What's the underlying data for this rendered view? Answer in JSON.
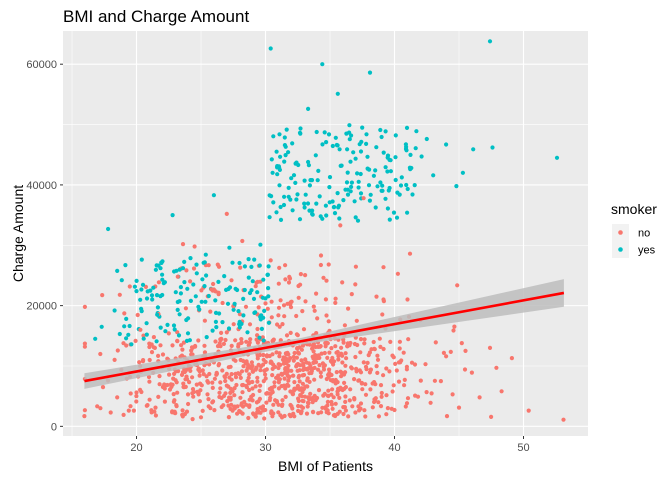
{
  "colors": {
    "no": "#F8766D",
    "yes": "#00BFC4",
    "trend": "#FF0000",
    "band": "#bdbdbd",
    "panel": "#EBEBEB"
  },
  "chart_data": {
    "type": "scatter",
    "title": "BMI and Charge Amount",
    "xlabel": "BMI of Patients",
    "ylabel": "Charge Amount",
    "xlim": [
      14.3,
      55.0
    ],
    "ylim": [
      -1600,
      65500
    ],
    "x_ticks": [
      20,
      30,
      40,
      50
    ],
    "y_ticks": [
      0,
      20000,
      40000,
      60000
    ],
    "y_tick_labels": [
      "0",
      "20000",
      "40000",
      "60000"
    ],
    "grid": true,
    "legend": {
      "title": "smoker",
      "position": "right",
      "entries": [
        "no",
        "yes"
      ]
    },
    "series": [
      {
        "name": "no",
        "color": "#F8766D",
        "note": "dense cloud of non-smokers, mostly 1000-15000 with a sparse upper tail to ~35000",
        "points": [
          [
            15.96,
            1694
          ],
          [
            17.2,
            3000
          ],
          [
            17.4,
            6500
          ],
          [
            18.0,
            2300
          ],
          [
            18.3,
            11000
          ],
          [
            18.5,
            4800
          ],
          [
            18.7,
            21800
          ],
          [
            19.0,
            1900
          ],
          [
            19.2,
            13400
          ],
          [
            19.5,
            8200
          ],
          [
            19.8,
            2600
          ],
          [
            20.0,
            5600
          ],
          [
            20.3,
            16000
          ],
          [
            20.5,
            10800
          ],
          [
            20.8,
            3400
          ],
          [
            21.0,
            7400
          ],
          [
            21.2,
            12300
          ],
          [
            21.5,
            1800
          ],
          [
            21.7,
            18600
          ],
          [
            22.0,
            9800
          ],
          [
            22.2,
            4100
          ],
          [
            22.5,
            15400
          ],
          [
            22.8,
            6900
          ],
          [
            23.0,
            2200
          ],
          [
            23.2,
            24800
          ],
          [
            23.4,
            11500
          ],
          [
            23.6,
            30200
          ],
          [
            23.8,
            7800
          ],
          [
            24.0,
            3700
          ],
          [
            24.3,
            13100
          ],
          [
            24.5,
            29800
          ],
          [
            24.8,
            9400
          ],
          [
            25.0,
            1500
          ],
          [
            25.3,
            17500
          ],
          [
            25.5,
            5300
          ],
          [
            25.8,
            22700
          ],
          [
            26.0,
            10600
          ],
          [
            26.3,
            26800
          ],
          [
            26.6,
            3200
          ],
          [
            26.9,
            14300
          ],
          [
            27.0,
            35200
          ],
          [
            27.2,
            8100
          ],
          [
            27.5,
            19900
          ],
          [
            27.8,
            2100
          ],
          [
            28.0,
            12600
          ],
          [
            28.2,
            30700
          ],
          [
            28.5,
            6700
          ],
          [
            28.8,
            16900
          ],
          [
            29.0,
            4300
          ],
          [
            29.3,
            23800
          ],
          [
            29.6,
            9300
          ],
          [
            29.9,
            1300
          ],
          [
            30.2,
            13800
          ],
          [
            30.4,
            27500
          ],
          [
            30.7,
            7300
          ],
          [
            31.0,
            18400
          ],
          [
            31.3,
            3600
          ],
          [
            31.6,
            11200
          ],
          [
            31.9,
            24500
          ],
          [
            32.2,
            5900
          ],
          [
            32.5,
            15100
          ],
          [
            32.8,
            2500
          ],
          [
            33.1,
            20700
          ],
          [
            33.4,
            8800
          ],
          [
            33.7,
            13300
          ],
          [
            34.0,
            4700
          ],
          [
            34.3,
            28300
          ],
          [
            34.6,
            10100
          ],
          [
            34.9,
            17400
          ],
          [
            35.2,
            2900
          ],
          [
            35.5,
            12200
          ],
          [
            35.8,
            33300
          ],
          [
            36.1,
            6200
          ],
          [
            36.4,
            19500
          ],
          [
            36.7,
            9600
          ],
          [
            37.0,
            14700
          ],
          [
            37.2,
            3300
          ],
          [
            37.6,
            37800
          ],
          [
            38.0,
            11800
          ],
          [
            38.3,
            7100
          ],
          [
            38.6,
            21500
          ],
          [
            39.0,
            4900
          ],
          [
            39.3,
            16200
          ],
          [
            39.6,
            9100
          ],
          [
            40.0,
            2700
          ],
          [
            40.4,
            12900
          ],
          [
            40.8,
            7700
          ],
          [
            41.2,
            28600
          ],
          [
            41.6,
            5100
          ],
          [
            42.0,
            17600
          ],
          [
            42.4,
            10300
          ],
          [
            42.8,
            3900
          ],
          [
            43.2,
            13900
          ],
          [
            43.6,
            7500
          ],
          [
            44.0,
            11600
          ],
          [
            44.5,
            5300
          ],
          [
            45.0,
            3100
          ],
          [
            45.5,
            12500
          ],
          [
            46.0,
            8900
          ],
          [
            46.6,
            4800
          ],
          [
            47.4,
            13000
          ],
          [
            47.9,
            9700
          ],
          [
            48.3,
            5800
          ],
          [
            49.1,
            11300
          ],
          [
            50.4,
            2600
          ],
          [
            53.1,
            1100
          ]
        ]
      },
      {
        "name": "yes",
        "color": "#00BFC4",
        "note": "smokers: lower band 13000-30000 for BMI<30, upper band 34000-63000 for BMI>30",
        "points": [
          [
            16.8,
            14500
          ],
          [
            17.3,
            16500
          ],
          [
            17.8,
            32700
          ],
          [
            18.3,
            19200
          ],
          [
            18.7,
            15300
          ],
          [
            19.2,
            17800
          ],
          [
            19.6,
            13600
          ],
          [
            20.0,
            22400
          ],
          [
            20.4,
            19100
          ],
          [
            20.8,
            15200
          ],
          [
            21.2,
            21700
          ],
          [
            21.6,
            18500
          ],
          [
            22.0,
            24300
          ],
          [
            22.4,
            16800
          ],
          [
            22.8,
            35000
          ],
          [
            23.2,
            20600
          ],
          [
            23.6,
            26200
          ],
          [
            24.0,
            17900
          ],
          [
            24.4,
            23500
          ],
          [
            24.8,
            19800
          ],
          [
            25.2,
            27100
          ],
          [
            25.6,
            21600
          ],
          [
            26.0,
            38300
          ],
          [
            26.4,
            18700
          ],
          [
            26.8,
            24900
          ],
          [
            27.2,
            29600
          ],
          [
            27.6,
            20300
          ],
          [
            28.0,
            17300
          ],
          [
            28.4,
            26500
          ],
          [
            28.8,
            22100
          ],
          [
            29.2,
            18900
          ],
          [
            29.6,
            30100
          ],
          [
            30.0,
            21200
          ],
          [
            30.4,
            62600
          ],
          [
            30.6,
            37100
          ],
          [
            30.9,
            42900
          ],
          [
            31.2,
            34200
          ],
          [
            31.5,
            46600
          ],
          [
            31.8,
            39500
          ],
          [
            32.1,
            35800
          ],
          [
            32.4,
            43700
          ],
          [
            32.7,
            48500
          ],
          [
            33.0,
            36900
          ],
          [
            33.3,
            52600
          ],
          [
            33.6,
            40800
          ],
          [
            33.9,
            44900
          ],
          [
            34.2,
            38100
          ],
          [
            34.4,
            60000
          ],
          [
            34.7,
            47100
          ],
          [
            35.0,
            41300
          ],
          [
            35.3,
            36300
          ],
          [
            35.6,
            55100
          ],
          [
            35.9,
            43200
          ],
          [
            36.2,
            39200
          ],
          [
            36.5,
            49900
          ],
          [
            36.8,
            45400
          ],
          [
            37.1,
            41900
          ],
          [
            37.4,
            38600
          ],
          [
            37.8,
            46800
          ],
          [
            38.1,
            58600
          ],
          [
            38.5,
            42400
          ],
          [
            38.9,
            49100
          ],
          [
            39.3,
            37700
          ],
          [
            39.7,
            44100
          ],
          [
            40.1,
            48200
          ],
          [
            40.5,
            39900
          ],
          [
            40.9,
            46300
          ],
          [
            41.3,
            42800
          ],
          [
            41.7,
            48900
          ],
          [
            42.1,
            44700
          ],
          [
            42.5,
            47600
          ],
          [
            43.0,
            41600
          ],
          [
            44.0,
            46700
          ],
          [
            44.8,
            39800
          ],
          [
            45.3,
            42000
          ],
          [
            46.1,
            45900
          ],
          [
            47.4,
            63800
          ],
          [
            47.6,
            46200
          ],
          [
            52.6,
            44500
          ]
        ]
      }
    ],
    "trend": {
      "label": "linear fit",
      "x": [
        15.96,
        53.13
      ],
      "y": [
        7500,
        22100
      ],
      "ci_halfwidth": [
        1300,
        2300
      ]
    }
  }
}
